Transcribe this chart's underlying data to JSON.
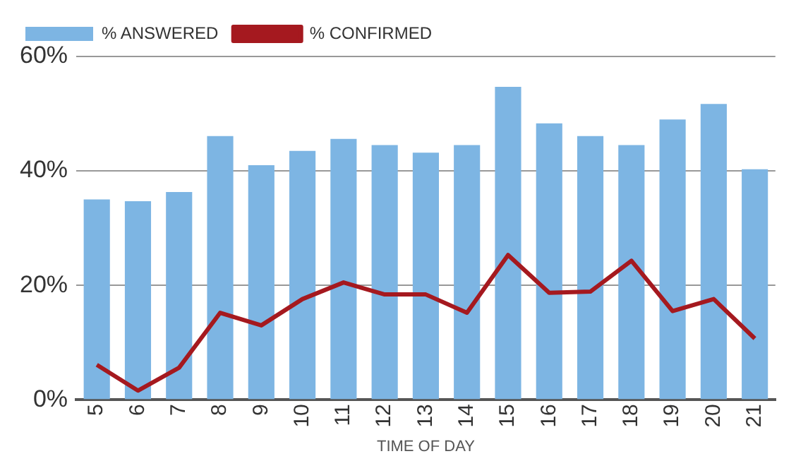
{
  "chart_data": {
    "type": "bar",
    "xlabel": "TIME OF DAY",
    "categories": [
      "5",
      "6",
      "7",
      "8",
      "9",
      "10",
      "11",
      "12",
      "13",
      "14",
      "15",
      "16",
      "17",
      "18",
      "19",
      "20",
      "21"
    ],
    "series": [
      {
        "name": "% ANSWERED",
        "color": "#7db5e3",
        "values": [
          35,
          34.7,
          36.3,
          46.1,
          41,
          43.5,
          45.6,
          44.5,
          43.2,
          44.5,
          54.7,
          48.3,
          46.1,
          44.5,
          49,
          51.7,
          40.3
        ]
      },
      {
        "name": "% CONFIRMED",
        "type": "line",
        "color": "#a5191f",
        "values": [
          6.1,
          1.6,
          5.6,
          15.2,
          13,
          17.6,
          20.5,
          18.4,
          18.4,
          15.2,
          25.3,
          18.7,
          18.9,
          24.3,
          15.5,
          17.6,
          10.7
        ]
      }
    ],
    "ylim": [
      0,
      60
    ],
    "yticks": [
      {
        "value": 0,
        "label": "0%"
      },
      {
        "value": 20,
        "label": "20%"
      },
      {
        "value": 40,
        "label": "40%"
      },
      {
        "value": 60,
        "label": "60%"
      }
    ],
    "grid": "y",
    "legend": "top left",
    "marker": "none",
    "line_style": "solid"
  }
}
